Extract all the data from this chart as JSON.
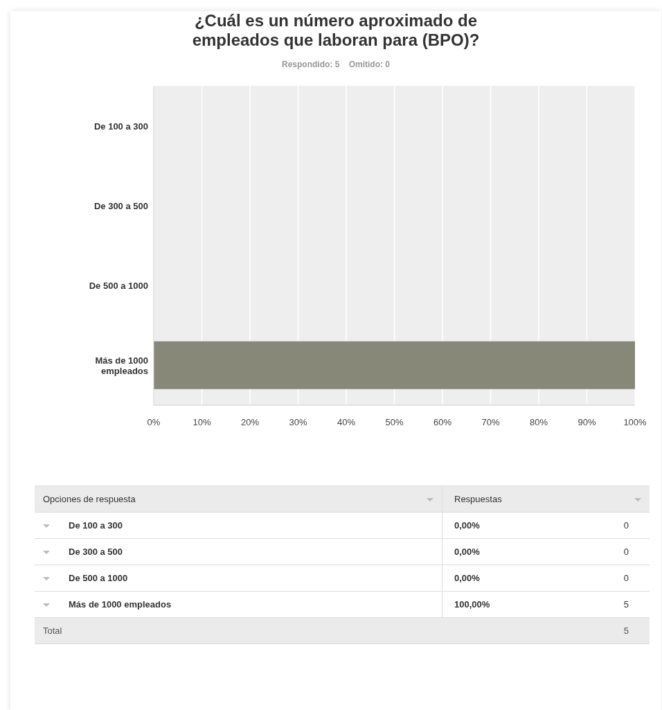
{
  "chart_data": [
    {
      "type": "bar",
      "title": "¿Cuál es un número aproximado de empleados que laboran para (BPO)?",
      "subtitle": "Respondido: 5    Omitido: 0",
      "categories": [
        "De 100 a 300",
        "De 300 a 500",
        "De 500 a 1000",
        "Más de 1000 empleados"
      ],
      "values": [
        0,
        0,
        0,
        100
      ],
      "color": "#888878",
      "orientation": "horizontal",
      "xlim": [
        0,
        100
      ],
      "xticks": [
        {
          "value": 0,
          "label": "0%"
        },
        {
          "value": 10,
          "label": "10%"
        },
        {
          "value": 20,
          "label": "20%"
        },
        {
          "value": 30,
          "label": "30%"
        },
        {
          "value": 40,
          "label": "40%"
        },
        {
          "value": 50,
          "label": "50%"
        },
        {
          "value": 60,
          "label": "60%"
        },
        {
          "value": 70,
          "label": "70%"
        },
        {
          "value": 80,
          "label": "80%"
        },
        {
          "value": 90,
          "label": "90%"
        },
        {
          "value": 100,
          "label": "100%"
        }
      ],
      "grid": "x",
      "legend": false,
      "value_labels": [
        "0,00%",
        "0,00%",
        "0,00%",
        "100,00%"
      ]
    },
    {
      "type": "other",
      "categories": [
        "De 100 a 300",
        "De 300 a 500",
        "De 500 a 1000",
        "Más de 1000 empleados"
      ],
      "values": [
        0,
        0,
        0,
        5
      ],
      "data_labels": true,
      "annotations": [
        "Opciones de respuesta",
        "Respuestas",
        "Total"
      ],
      "totals": [
        "5"
      ]
    }
  ]
}
